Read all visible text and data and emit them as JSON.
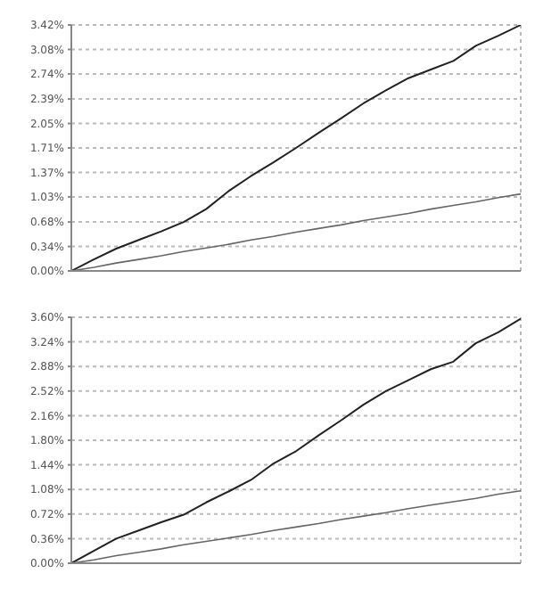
{
  "chart_data": [
    {
      "type": "line",
      "categories": [
        null,
        null,
        null,
        null,
        null,
        null,
        null,
        null,
        null,
        null,
        null,
        null,
        null,
        null,
        null,
        null,
        null,
        null,
        null,
        null,
        null
      ],
      "series": [
        {
          "color": "#222222",
          "values": [
            0,
            0.16,
            0.31,
            0.43,
            0.55,
            0.68,
            0.86,
            1.11,
            1.32,
            1.51,
            1.71,
            1.92,
            2.12,
            2.33,
            2.51,
            2.68,
            2.8,
            2.92,
            3.13,
            3.27,
            3.42
          ]
        },
        {
          "color": "#666666",
          "values": [
            0,
            0.05,
            0.11,
            0.16,
            0.21,
            0.27,
            0.32,
            0.37,
            0.43,
            0.48,
            0.54,
            0.59,
            0.64,
            0.7,
            0.75,
            0.8,
            0.86,
            0.91,
            0.96,
            1.02,
            1.07
          ]
        }
      ],
      "ylim": [
        0,
        3.42
      ],
      "yticks": [
        {
          "value": 0,
          "label": "0.00%"
        },
        {
          "value": 0.34,
          "label": "0.34%"
        },
        {
          "value": 0.68,
          "label": "0.68%"
        },
        {
          "value": 1.03,
          "label": "1.03%"
        },
        {
          "value": 1.37,
          "label": "1.37%"
        },
        {
          "value": 1.71,
          "label": "1.71%"
        },
        {
          "value": 2.05,
          "label": "2.05%"
        },
        {
          "value": 2.39,
          "label": "2.39%"
        },
        {
          "value": 2.74,
          "label": "2.74%"
        },
        {
          "value": 3.08,
          "label": "3.08%"
        },
        {
          "value": 3.42,
          "label": "3.42%"
        }
      ],
      "grid": true,
      "tick_labels": "y",
      "marker": "none",
      "line_style": "solid"
    },
    {
      "type": "line",
      "categories": [
        null,
        null,
        null,
        null,
        null,
        null,
        null,
        null,
        null,
        null,
        null,
        null,
        null,
        null,
        null,
        null,
        null,
        null,
        null,
        null,
        null
      ],
      "series": [
        {
          "color": "#222222",
          "values": [
            0,
            0.18,
            0.36,
            0.48,
            0.6,
            0.71,
            0.89,
            1.05,
            1.22,
            1.46,
            1.64,
            1.87,
            2.09,
            2.32,
            2.52,
            2.68,
            2.84,
            2.95,
            3.22,
            3.38,
            3.58
          ]
        },
        {
          "color": "#666666",
          "values": [
            0,
            0.05,
            0.11,
            0.16,
            0.21,
            0.27,
            0.32,
            0.37,
            0.42,
            0.48,
            0.53,
            0.58,
            0.64,
            0.69,
            0.74,
            0.8,
            0.85,
            0.9,
            0.95,
            1.01,
            1.06
          ]
        }
      ],
      "ylim": [
        0,
        3.6
      ],
      "yticks": [
        {
          "value": 0,
          "label": "0.00%"
        },
        {
          "value": 0.36,
          "label": "0.36%"
        },
        {
          "value": 0.72,
          "label": "0.72%"
        },
        {
          "value": 1.08,
          "label": "1.08%"
        },
        {
          "value": 1.44,
          "label": "1.44%"
        },
        {
          "value": 1.8,
          "label": "1.80%"
        },
        {
          "value": 2.16,
          "label": "2.16%"
        },
        {
          "value": 2.52,
          "label": "2.52%"
        },
        {
          "value": 2.88,
          "label": "2.88%"
        },
        {
          "value": 3.24,
          "label": "3.24%"
        },
        {
          "value": 3.6,
          "label": "3.60%"
        }
      ],
      "grid": true,
      "tick_labels": "y",
      "marker": "none",
      "line_style": "solid"
    }
  ]
}
